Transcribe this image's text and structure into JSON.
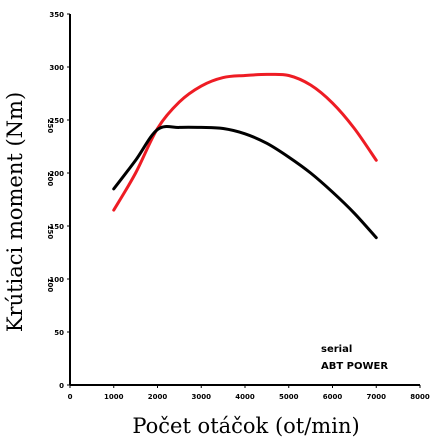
{
  "chart_data": {
    "type": "line",
    "xlabel": "Počet otáčok (ot/min)",
    "ylabel": "Krútiaci moment (Nm)",
    "xlim": [
      0,
      8000
    ],
    "ylim": [
      0,
      350
    ],
    "x_ticks": [
      "0",
      "1000",
      "2000",
      "3000",
      "4000",
      "5000",
      "6000",
      "7000",
      "8000"
    ],
    "y_ticks": [
      "0",
      "50",
      "100",
      "150",
      "200",
      "250",
      "300",
      "350"
    ],
    "extra_y_ticks": [
      "100",
      "150",
      "200",
      "250"
    ],
    "legend_labels": [
      "serial",
      "ABT POWER"
    ],
    "series": [
      {
        "name": "ABT POWER",
        "color": "#ee1c24",
        "x": [
          1000,
          1500,
          2000,
          2500,
          3000,
          3500,
          4000,
          4500,
          5000,
          5500,
          6000,
          6500,
          7000
        ],
        "y": [
          165,
          200,
          242,
          267,
          282,
          290,
          292,
          293,
          292,
          283,
          266,
          242,
          212
        ]
      },
      {
        "name": "serial",
        "color": "#000000",
        "x": [
          1000,
          1500,
          2000,
          2500,
          3000,
          3500,
          4000,
          4500,
          5000,
          5500,
          6000,
          6500,
          7000
        ],
        "y": [
          185,
          212,
          241,
          243,
          243,
          242,
          237,
          228,
          215,
          200,
          182,
          162,
          139
        ]
      }
    ]
  }
}
